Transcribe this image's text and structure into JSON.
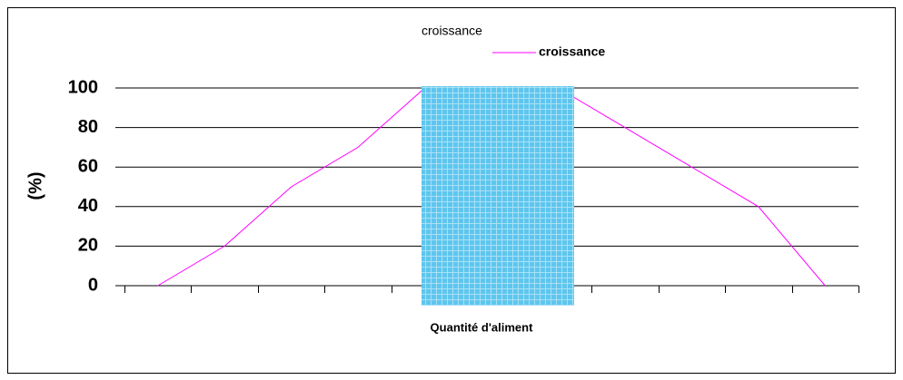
{
  "chart_data": {
    "type": "line",
    "title": "croissance",
    "categories": [
      null,
      null,
      null,
      null,
      null,
      null,
      null,
      null,
      null,
      null,
      null
    ],
    "series": [
      {
        "name": "croissance",
        "color": "#ff00ff",
        "values": [
          0,
          20,
          50,
          70,
          100,
          100,
          100,
          80,
          60,
          40,
          0
        ]
      }
    ],
    "ylim": [
      0,
      100
    ],
    "yticks": [
      0,
      20,
      40,
      60,
      80,
      100
    ],
    "grid": true,
    "y_label": "(%)",
    "x_label": "Quantité d'aliment"
  }
}
